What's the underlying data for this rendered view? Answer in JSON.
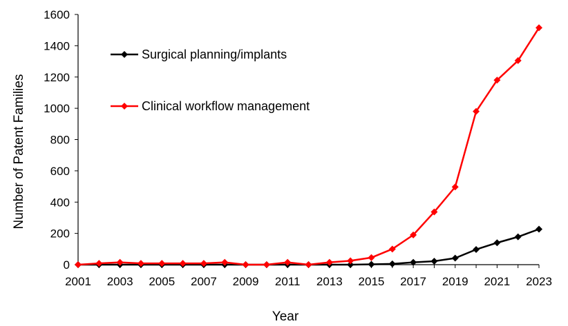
{
  "chart_data": {
    "type": "line",
    "title": "",
    "xlabel": "Year",
    "ylabel": "Number of Patent Families",
    "xlim": [
      2001,
      2023
    ],
    "ylim": [
      0,
      1600
    ],
    "yticks": [
      0,
      200,
      400,
      600,
      800,
      1000,
      1200,
      1400,
      1600
    ],
    "xtick_labels": [
      "2001",
      "2003",
      "2005",
      "2007",
      "2009",
      "2011",
      "2013",
      "2015",
      "2017",
      "2019",
      "2021",
      "2023"
    ],
    "grid": false,
    "legend_position": "upper-left",
    "x": [
      2001,
      2002,
      2003,
      2004,
      2005,
      2006,
      2007,
      2008,
      2009,
      2010,
      2011,
      2012,
      2013,
      2014,
      2015,
      2016,
      2017,
      2018,
      2019,
      2020,
      2021,
      2022,
      2023
    ],
    "series": [
      {
        "name": "Surgical planning/implants",
        "color": "#000000",
        "marker": "diamond",
        "values": [
          0,
          0,
          0,
          0,
          0,
          0,
          0,
          0,
          0,
          0,
          0,
          0,
          0,
          0,
          2,
          5,
          15,
          22,
          42,
          97,
          140,
          178,
          227
        ]
      },
      {
        "name": "Clinical workflow management",
        "color": "#ff0000",
        "marker": "diamond",
        "values": [
          0,
          8,
          15,
          8,
          8,
          8,
          8,
          15,
          0,
          0,
          15,
          0,
          15,
          25,
          45,
          100,
          190,
          337,
          497,
          980,
          1180,
          1305,
          1515
        ]
      }
    ]
  }
}
